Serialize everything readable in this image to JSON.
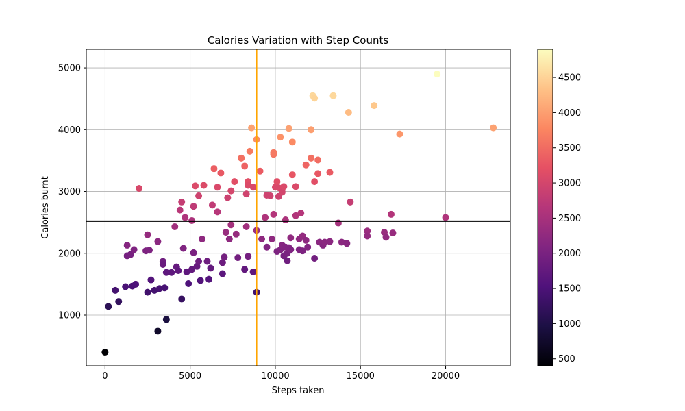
{
  "chart_data": {
    "type": "scatter",
    "title": "Calories Variation with Step Counts",
    "xlabel": "Steps taken",
    "ylabel": "Calories burnt",
    "xlim": [
      -1100,
      23800
    ],
    "ylim": [
      180,
      5300
    ],
    "xticks": [
      0,
      5000,
      10000,
      15000,
      20000
    ],
    "yticks": [
      1000,
      2000,
      3000,
      4000,
      5000
    ],
    "grid": true,
    "colormap": "magma",
    "colorbar": {
      "range": [
        400,
        4900
      ],
      "ticks": [
        500,
        1000,
        1500,
        2000,
        2500,
        3000,
        3500,
        4000,
        4500
      ]
    },
    "reference_lines": [
      {
        "orientation": "vertical",
        "x": 8900,
        "color": "#ffa500"
      },
      {
        "orientation": "horizontal",
        "y": 2520,
        "color": "#000000"
      }
    ],
    "points": [
      [
        0,
        400
      ],
      [
        200,
        1140
      ],
      [
        600,
        1400
      ],
      [
        800,
        1220
      ],
      [
        1200,
        1460
      ],
      [
        1600,
        1470
      ],
      [
        1800,
        1500
      ],
      [
        1300,
        1960
      ],
      [
        1500,
        1980
      ],
      [
        1700,
        2060
      ],
      [
        1300,
        2130
      ],
      [
        2400,
        2040
      ],
      [
        2600,
        2050
      ],
      [
        2500,
        2300
      ],
      [
        3100,
        2190
      ],
      [
        2000,
        3050
      ],
      [
        2700,
        1570
      ],
      [
        2500,
        1370
      ],
      [
        2900,
        1400
      ],
      [
        3200,
        1430
      ],
      [
        3500,
        1440
      ],
      [
        3400,
        1870
      ],
      [
        3400,
        1820
      ],
      [
        3600,
        1690
      ],
      [
        3900,
        1690
      ],
      [
        4200,
        1780
      ],
      [
        4300,
        1720
      ],
      [
        4500,
        1260
      ],
      [
        3600,
        930
      ],
      [
        3100,
        740
      ],
      [
        4100,
        2430
      ],
      [
        4400,
        2700
      ],
      [
        4500,
        2830
      ],
      [
        4700,
        2580
      ],
      [
        4600,
        2080
      ],
      [
        4900,
        1510
      ],
      [
        4800,
        1700
      ],
      [
        5100,
        1740
      ],
      [
        5200,
        2010
      ],
      [
        5100,
        2530
      ],
      [
        5200,
        2760
      ],
      [
        5300,
        3090
      ],
      [
        5400,
        1790
      ],
      [
        5500,
        1870
      ],
      [
        5600,
        1560
      ],
      [
        5700,
        2230
      ],
      [
        5500,
        2930
      ],
      [
        5800,
        3100
      ],
      [
        6000,
        1870
      ],
      [
        6100,
        1580
      ],
      [
        6200,
        1760
      ],
      [
        6300,
        2780
      ],
      [
        6400,
        3370
      ],
      [
        6600,
        3070
      ],
      [
        6600,
        2670
      ],
      [
        6800,
        3300
      ],
      [
        6900,
        1670
      ],
      [
        6900,
        1850
      ],
      [
        7000,
        1940
      ],
      [
        7100,
        2340
      ],
      [
        7200,
        2900
      ],
      [
        7300,
        2230
      ],
      [
        7400,
        2460
      ],
      [
        7400,
        3010
      ],
      [
        7600,
        3160
      ],
      [
        7700,
        2310
      ],
      [
        7800,
        1930
      ],
      [
        8000,
        3540
      ],
      [
        8200,
        3410
      ],
      [
        8300,
        2430
      ],
      [
        8300,
        2960
      ],
      [
        8400,
        3160
      ],
      [
        8400,
        3100
      ],
      [
        8500,
        3650
      ],
      [
        8600,
        4030
      ],
      [
        8700,
        3070
      ],
      [
        8200,
        1740
      ],
      [
        8400,
        1950
      ],
      [
        8700,
        1700
      ],
      [
        8900,
        3840
      ],
      [
        8900,
        1370
      ],
      [
        8900,
        2370
      ],
      [
        9100,
        3330
      ],
      [
        9200,
        2230
      ],
      [
        9400,
        2580
      ],
      [
        9500,
        2940
      ],
      [
        9500,
        2100
      ],
      [
        9700,
        2930
      ],
      [
        9800,
        2230
      ],
      [
        9900,
        2630
      ],
      [
        9900,
        3600
      ],
      [
        9900,
        3630
      ],
      [
        10000,
        3070
      ],
      [
        10100,
        3160
      ],
      [
        10200,
        2920
      ],
      [
        10200,
        3060
      ],
      [
        10300,
        3880
      ],
      [
        10400,
        2990
      ],
      [
        10500,
        3080
      ],
      [
        10600,
        2540
      ],
      [
        10100,
        2030
      ],
      [
        10300,
        2060
      ],
      [
        10400,
        2130
      ],
      [
        10500,
        1960
      ],
      [
        10600,
        2100
      ],
      [
        10700,
        2000
      ],
      [
        10800,
        2090
      ],
      [
        10900,
        2060
      ],
      [
        10700,
        1880
      ],
      [
        10800,
        4020
      ],
      [
        10900,
        2250
      ],
      [
        11000,
        3270
      ],
      [
        11000,
        3800
      ],
      [
        11200,
        2610
      ],
      [
        11200,
        3080
      ],
      [
        11400,
        2060
      ],
      [
        11400,
        2230
      ],
      [
        11500,
        2650
      ],
      [
        11600,
        2040
      ],
      [
        11600,
        2280
      ],
      [
        11800,
        3430
      ],
      [
        11800,
        2210
      ],
      [
        11900,
        2100
      ],
      [
        12100,
        4000
      ],
      [
        12100,
        3540
      ],
      [
        12200,
        4550
      ],
      [
        12300,
        4510
      ],
      [
        12300,
        3160
      ],
      [
        12300,
        1920
      ],
      [
        12500,
        3290
      ],
      [
        12500,
        3510
      ],
      [
        12600,
        2180
      ],
      [
        12800,
        2130
      ],
      [
        12900,
        2180
      ],
      [
        13200,
        2190
      ],
      [
        13200,
        3310
      ],
      [
        13400,
        4550
      ],
      [
        13700,
        2490
      ],
      [
        13900,
        2180
      ],
      [
        14200,
        2160
      ],
      [
        14300,
        4280
      ],
      [
        14400,
        2830
      ],
      [
        15400,
        2360
      ],
      [
        15400,
        2280
      ],
      [
        15800,
        4390
      ],
      [
        16400,
        2340
      ],
      [
        16500,
        2260
      ],
      [
        16800,
        2630
      ],
      [
        16900,
        2330
      ],
      [
        17300,
        3930
      ],
      [
        19500,
        4900
      ],
      [
        20000,
        2580
      ],
      [
        22800,
        4030
      ]
    ]
  }
}
